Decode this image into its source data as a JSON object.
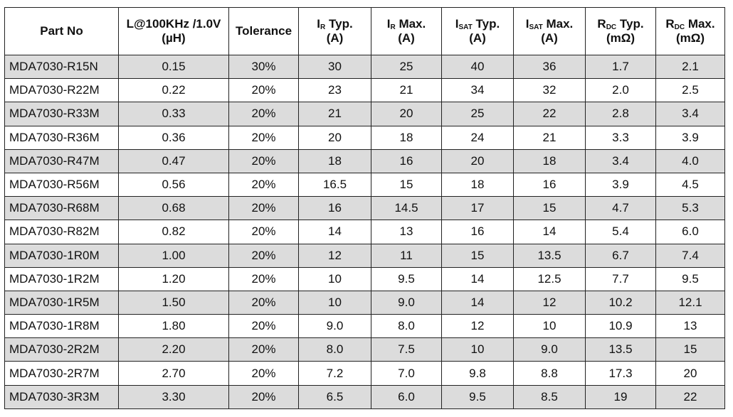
{
  "columns": [
    {
      "key": "part_no",
      "line1": "Part No",
      "line2": ""
    },
    {
      "key": "inductance",
      "line1": "L@100KHz /1.0V",
      "line2": "(µH)"
    },
    {
      "key": "tolerance",
      "line1": "Tolerance",
      "line2": ""
    },
    {
      "key": "ir_typ",
      "sym": "I",
      "sub": "R",
      "label": " Typ.",
      "line2": "(A)"
    },
    {
      "key": "ir_max",
      "sym": "I",
      "sub": "R",
      "label": " Max.",
      "line2": "(A)"
    },
    {
      "key": "isat_typ",
      "sym": "I",
      "sub": "SAT",
      "label": " Typ.",
      "line2": "(A)"
    },
    {
      "key": "isat_max",
      "sym": "I",
      "sub": "SAT",
      "label": " Max.",
      "line2": "(A)"
    },
    {
      "key": "rdc_typ",
      "sym": "R",
      "sub": "DC",
      "label": " Typ.",
      "line2": "(mΩ)"
    },
    {
      "key": "rdc_max",
      "sym": "R",
      "sub": "DC",
      "label": " Max.",
      "line2": "(mΩ)"
    }
  ],
  "rows": [
    [
      "MDA7030-R15N",
      "0.15",
      "30%",
      "30",
      "25",
      "40",
      "36",
      "1.7",
      "2.1"
    ],
    [
      "MDA7030-R22M",
      "0.22",
      "20%",
      "23",
      "21",
      "34",
      "32",
      "2.0",
      "2.5"
    ],
    [
      "MDA7030-R33M",
      "0.33",
      "20%",
      "21",
      "20",
      "25",
      "22",
      "2.8",
      "3.4"
    ],
    [
      "MDA7030-R36M",
      "0.36",
      "20%",
      "20",
      "18",
      "24",
      "21",
      "3.3",
      "3.9"
    ],
    [
      "MDA7030-R47M",
      "0.47",
      "20%",
      "18",
      "16",
      "20",
      "18",
      "3.4",
      "4.0"
    ],
    [
      "MDA7030-R56M",
      "0.56",
      "20%",
      "16.5",
      "15",
      "18",
      "16",
      "3.9",
      "4.5"
    ],
    [
      "MDA7030-R68M",
      "0.68",
      "20%",
      "16",
      "14.5",
      "17",
      "15",
      "4.7",
      "5.3"
    ],
    [
      "MDA7030-R82M",
      "0.82",
      "20%",
      "14",
      "13",
      "16",
      "14",
      "5.4",
      "6.0"
    ],
    [
      "MDA7030-1R0M",
      "1.00",
      "20%",
      "12",
      "11",
      "15",
      "13.5",
      "6.7",
      "7.4"
    ],
    [
      "MDA7030-1R2M",
      "1.20",
      "20%",
      "10",
      "9.5",
      "14",
      "12.5",
      "7.7",
      "9.5"
    ],
    [
      "MDA7030-1R5M",
      "1.50",
      "20%",
      "10",
      "9.0",
      "14",
      "12",
      "10.2",
      "12.1"
    ],
    [
      "MDA7030-1R8M",
      "1.80",
      "20%",
      "9.0",
      "8.0",
      "12",
      "10",
      "10.9",
      "13"
    ],
    [
      "MDA7030-2R2M",
      "2.20",
      "20%",
      "8.0",
      "7.5",
      "10",
      "9.0",
      "13.5",
      "15"
    ],
    [
      "MDA7030-2R7M",
      "2.70",
      "20%",
      "7.2",
      "7.0",
      "9.8",
      "8.8",
      "17.3",
      "20"
    ],
    [
      "MDA7030-3R3M",
      "3.30",
      "20%",
      "6.5",
      "6.0",
      "9.5",
      "8.5",
      "19",
      "22"
    ]
  ],
  "shaded_rows": [
    0,
    2,
    4,
    6,
    8,
    10,
    12,
    14
  ],
  "colors": {
    "shade": "#dcdcdc",
    "border": "#222222",
    "text": "#111111"
  }
}
